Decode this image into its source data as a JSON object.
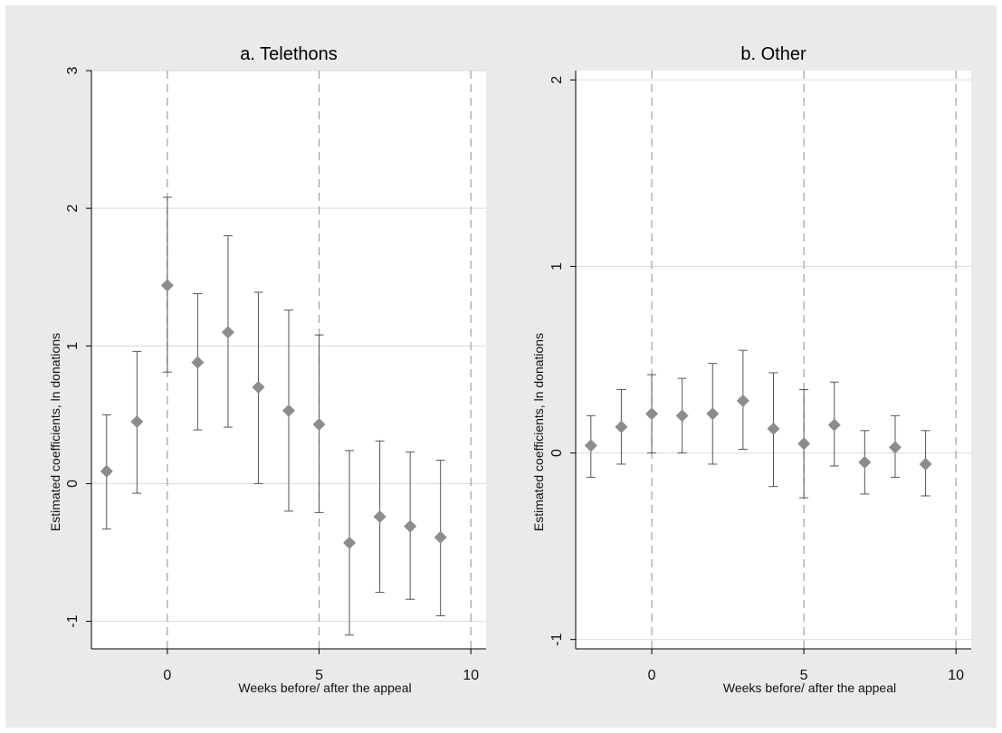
{
  "colors": {
    "canvas_background": "#eaeaea",
    "plot_background": "#ffffff",
    "marker": "#8c8c8c",
    "error_bar": "#555555",
    "gridline": "#d9d9d9",
    "reference_line": "#a0a0a0"
  },
  "chart_data": [
    {
      "type": "scatter",
      "title": "a. Telethons",
      "xlabel": "Weeks before/ after the appeal",
      "ylabel": "Estimated coefficients, ln donations",
      "xlim": [
        -2.5,
        10.5
      ],
      "ylim": [
        -1.2,
        3.0
      ],
      "xticks": [
        0,
        5,
        10
      ],
      "xtick_labels": [
        "0",
        "5",
        "10"
      ],
      "yticks": [
        -1,
        0,
        1,
        2,
        3
      ],
      "ytick_labels": [
        "-1",
        "0",
        "1",
        "2",
        "3"
      ],
      "grid": "horizontal",
      "reference_lines_x": [
        0,
        5,
        10
      ],
      "marker": "diamond",
      "error_bars": true,
      "points": [
        {
          "x": -2,
          "y": 0.09,
          "lo": -0.33,
          "hi": 0.5
        },
        {
          "x": -1,
          "y": 0.45,
          "lo": -0.07,
          "hi": 0.96
        },
        {
          "x": 0,
          "y": 1.44,
          "lo": 0.81,
          "hi": 2.08
        },
        {
          "x": 1,
          "y": 0.88,
          "lo": 0.39,
          "hi": 1.38
        },
        {
          "x": 2,
          "y": 1.1,
          "lo": 0.41,
          "hi": 1.8
        },
        {
          "x": 3,
          "y": 0.7,
          "lo": 0.0,
          "hi": 1.39
        },
        {
          "x": 4,
          "y": 0.53,
          "lo": -0.2,
          "hi": 1.26
        },
        {
          "x": 5,
          "y": 0.43,
          "lo": -0.21,
          "hi": 1.08
        },
        {
          "x": 6,
          "y": -0.43,
          "lo": -1.1,
          "hi": 0.24
        },
        {
          "x": 7,
          "y": -0.24,
          "lo": -0.79,
          "hi": 0.31
        },
        {
          "x": 8,
          "y": -0.31,
          "lo": -0.84,
          "hi": 0.23
        },
        {
          "x": 9,
          "y": -0.39,
          "lo": -0.96,
          "hi": 0.17
        }
      ]
    },
    {
      "type": "scatter",
      "title": "b. Other",
      "xlabel": "Weeks before/ after the appeal",
      "ylabel": "Estimated coefficients, ln donations",
      "xlim": [
        -2.5,
        10.5
      ],
      "ylim": [
        -1.05,
        2.05
      ],
      "xticks": [
        0,
        5,
        10
      ],
      "xtick_labels": [
        "0",
        "5",
        "10"
      ],
      "yticks": [
        -1,
        0,
        1,
        2
      ],
      "ytick_labels": [
        "-1",
        "0",
        "1",
        "2"
      ],
      "grid": "horizontal",
      "reference_lines_x": [
        0,
        5,
        10
      ],
      "marker": "diamond",
      "error_bars": true,
      "points": [
        {
          "x": -2,
          "y": 0.04,
          "lo": -0.13,
          "hi": 0.2
        },
        {
          "x": -1,
          "y": 0.14,
          "lo": -0.06,
          "hi": 0.34
        },
        {
          "x": 0,
          "y": 0.21,
          "lo": 0.0,
          "hi": 0.42
        },
        {
          "x": 1,
          "y": 0.2,
          "lo": 0.0,
          "hi": 0.4
        },
        {
          "x": 2,
          "y": 0.21,
          "lo": -0.06,
          "hi": 0.48
        },
        {
          "x": 3,
          "y": 0.28,
          "lo": 0.02,
          "hi": 0.55
        },
        {
          "x": 4,
          "y": 0.13,
          "lo": -0.18,
          "hi": 0.43
        },
        {
          "x": 5,
          "y": 0.05,
          "lo": -0.24,
          "hi": 0.34
        },
        {
          "x": 6,
          "y": 0.15,
          "lo": -0.07,
          "hi": 0.38
        },
        {
          "x": 7,
          "y": -0.05,
          "lo": -0.22,
          "hi": 0.12
        },
        {
          "x": 8,
          "y": 0.03,
          "lo": -0.13,
          "hi": 0.2
        },
        {
          "x": 9,
          "y": -0.06,
          "lo": -0.23,
          "hi": 0.12
        }
      ]
    }
  ]
}
